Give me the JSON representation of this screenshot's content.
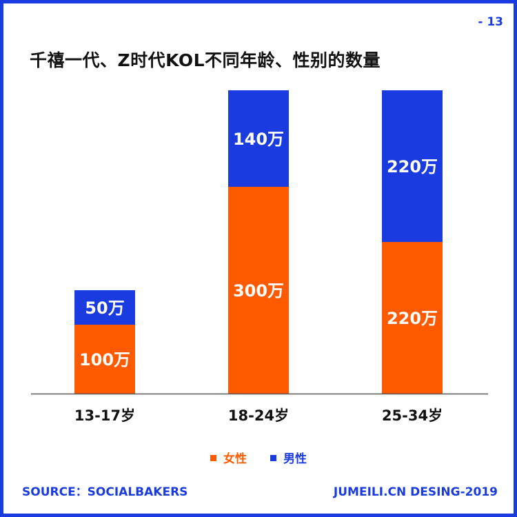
{
  "page_number": "- 13",
  "footer": {
    "source": "SOURCE：SOCIALBAKERS",
    "credit": "JUMEILI.CN DESING-2019"
  },
  "colors": {
    "frame": "#1a3be0",
    "female": "#ff5a00",
    "male": "#1a3be0",
    "axis": "#555555"
  },
  "chart_data": {
    "type": "bar",
    "stacked": true,
    "title": "千禧一代、Z时代KOL不同年龄、性别的数量",
    "categories": [
      "13-17岁",
      "18-24岁",
      "25-34岁"
    ],
    "unit": "万",
    "ylim": [
      0,
      440
    ],
    "grid": false,
    "legend": "bottom-center",
    "series": [
      {
        "name": "女性",
        "color": "#ff5a00",
        "values": [
          100,
          300,
          220
        ],
        "labels": [
          "100万",
          "300万",
          "220万"
        ]
      },
      {
        "name": "男性",
        "color": "#1a3be0",
        "values": [
          50,
          140,
          220
        ],
        "labels": [
          "50万",
          "140万",
          "220万"
        ]
      }
    ]
  }
}
